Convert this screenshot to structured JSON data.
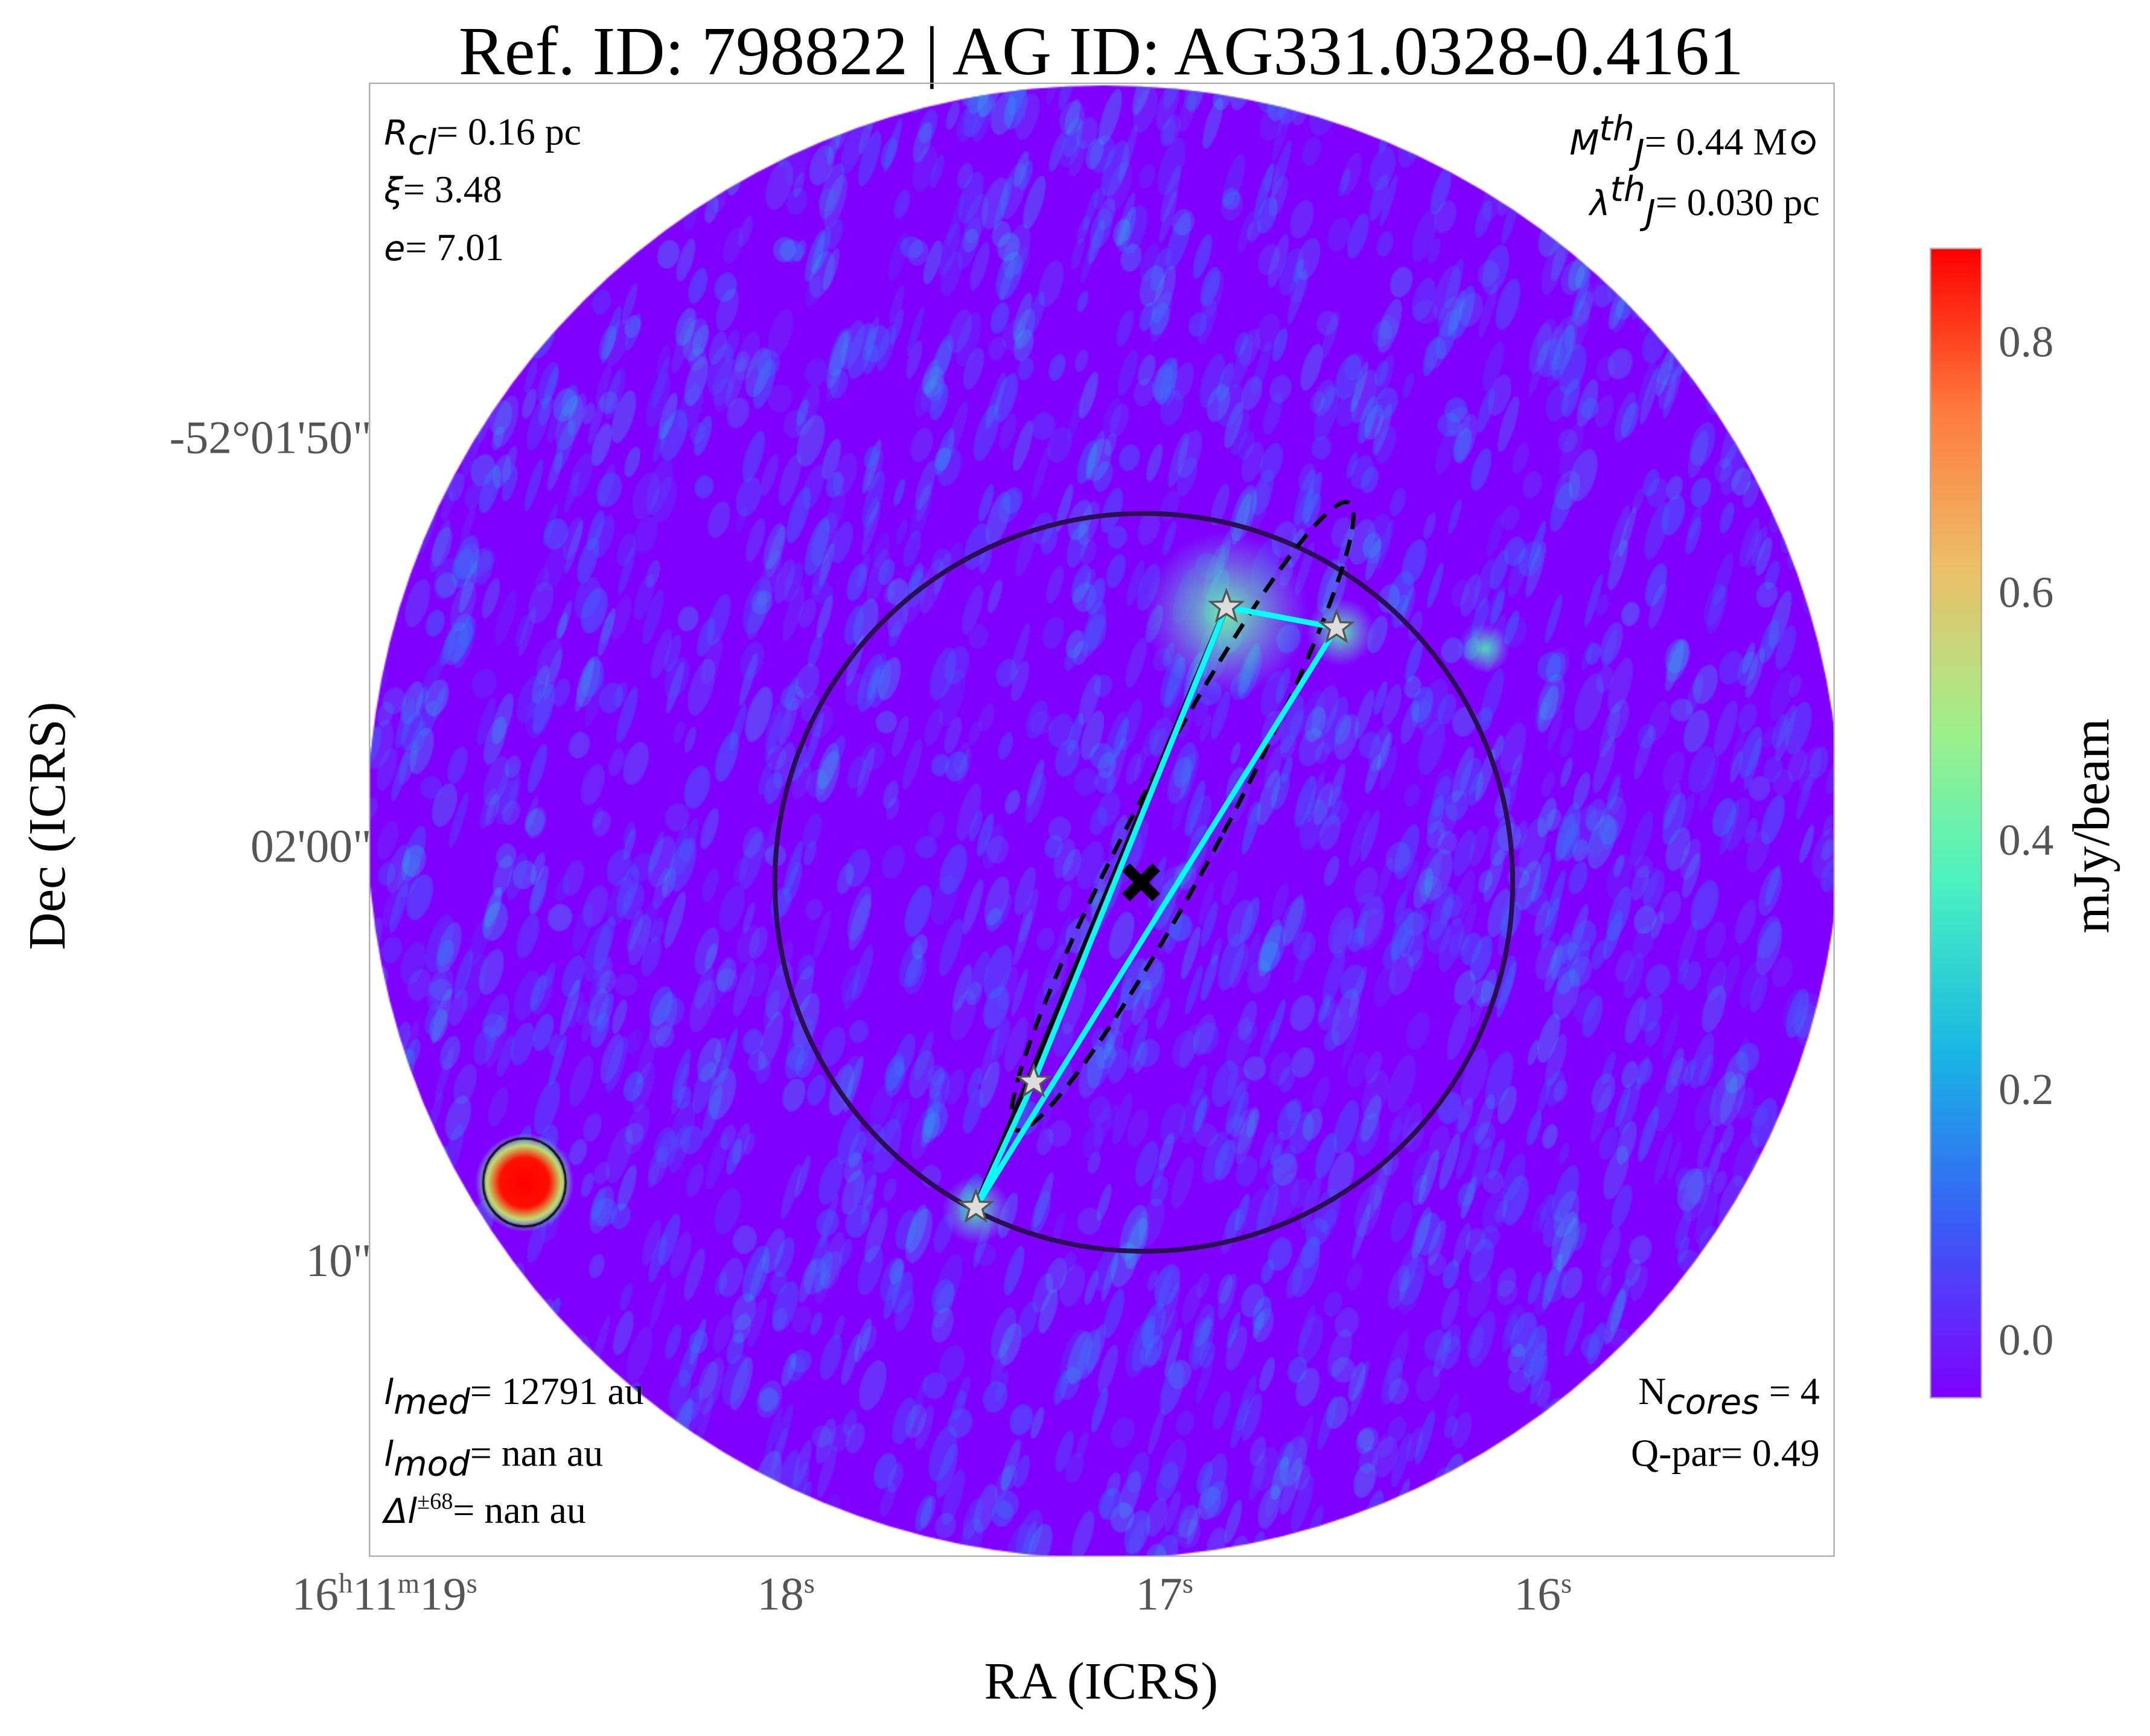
{
  "title": "Ref. ID: 798822 | AG ID: AG331.0328-0.4161",
  "annotations": {
    "r_cl": {
      "label": "R",
      "sub": "cl",
      "value": "= 0.16 pc"
    },
    "xi": {
      "label": "ξ",
      "value": "= 3.48"
    },
    "e": {
      "label": "e",
      "value": "= 7.01"
    },
    "mj": {
      "label": "M",
      "sub": "J",
      "sup": "th",
      "value": "= 0.44 M⊙"
    },
    "lambda": {
      "label": "λ",
      "sub": "J",
      "sup": "th",
      "value": "= 0.030 pc"
    },
    "l_med": {
      "label": "l",
      "sub": "med",
      "value": "= 12791 au"
    },
    "l_mod": {
      "label": "l",
      "sub": "mod",
      "value": "= nan au"
    },
    "delta_l": {
      "label": "Δl",
      "sup": "±68",
      "value": "= nan au"
    },
    "n_cores": {
      "label": "N",
      "sub": "cores",
      "value": " = 4"
    },
    "q_par": {
      "value": "Q-par= 0.49"
    }
  },
  "chart_data": {
    "type": "heatmap",
    "title": "Ref. ID: 798822 | AG ID: AG331.0328-0.4161",
    "xlabel": "RA (ICRS)",
    "ylabel": "Dec (ICRS)",
    "x_ticks": [
      {
        "h": "16",
        "m": "11",
        "s": "19"
      },
      {
        "s": "18"
      },
      {
        "s": "17"
      },
      {
        "s": "16"
      }
    ],
    "y_ticks": [
      "-52°01'50\"",
      "02'00\"",
      "10\""
    ],
    "colorbar": {
      "label": "mJy/beam",
      "ticks": [
        "0.0",
        "0.2",
        "0.4",
        "0.6",
        "0.8"
      ],
      "range": [
        -0.05,
        0.88
      ],
      "colormap": "rainbow"
    },
    "cores": 4,
    "colors": {
      "low": "#7f00ff",
      "mid": "#2adddd",
      "high": "#ff0000",
      "clump_circle": "#2a1050",
      "mst": "#00ffff"
    }
  }
}
